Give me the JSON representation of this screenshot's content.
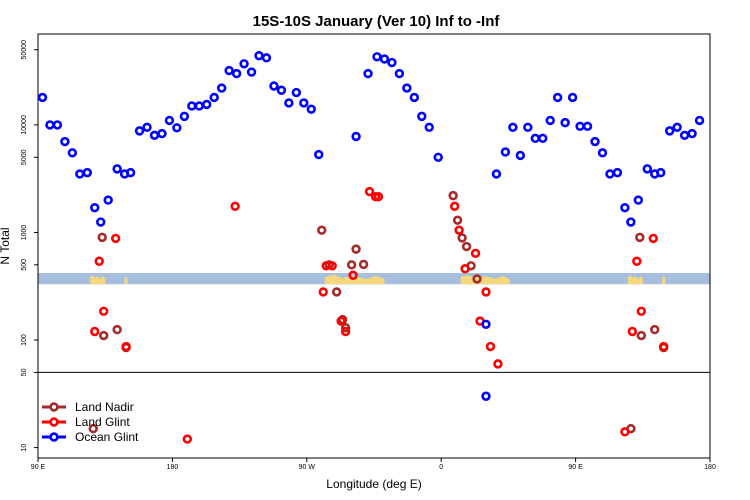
{
  "chart_data": {
    "type": "scatter",
    "title": "15S-10S January (Ver 10)   Inf to -Inf",
    "xlabel": "Longitude (deg E)",
    "ylabel": "N Total",
    "x_scale": "linear",
    "y_scale": "log",
    "xlim": [
      90,
      540
    ],
    "ylim": [
      8,
      70000
    ],
    "x_ticks": [
      {
        "value": 90,
        "label": "90 E"
      },
      {
        "value": 180,
        "label": "180"
      },
      {
        "value": 270,
        "label": "90 W"
      },
      {
        "value": 360,
        "label": "0"
      },
      {
        "value": 450,
        "label": "90 E"
      },
      {
        "value": 540,
        "label": "180"
      }
    ],
    "y_ticks": [
      {
        "value": 10,
        "label": "10"
      },
      {
        "value": 50,
        "label": "50"
      },
      {
        "value": 100,
        "label": "100"
      },
      {
        "value": 500,
        "label": "500"
      },
      {
        "value": 1000,
        "label": "1000"
      },
      {
        "value": 5000,
        "label": "5000"
      },
      {
        "value": 10000,
        "label": "10000"
      },
      {
        "value": 50000,
        "label": "50000"
      }
    ],
    "reference_line_y": 50,
    "map_band": {
      "y_low": 330,
      "y_high": 420,
      "water_color": "#a7bfdf",
      "land_color": "#f7d77c"
    },
    "land_segments": [
      {
        "x0": 125,
        "x1": 135
      },
      {
        "x0": 148,
        "x1": 150
      },
      {
        "x0": 282,
        "x1": 322
      },
      {
        "x0": 373,
        "x1": 406
      },
      {
        "x0": 485,
        "x1": 495
      },
      {
        "x0": 508,
        "x1": 510
      }
    ],
    "legend": {
      "position": "bottom-left",
      "entries": [
        {
          "label": "Land Nadir",
          "color": "#a52a2a"
        },
        {
          "label": "Land Glint",
          "color": "#ff0000"
        },
        {
          "label": "Ocean Glint",
          "color": "#0000ff"
        }
      ]
    },
    "series": [
      {
        "name": "Land Nadir",
        "color": "#a52a2a",
        "points": [
          [
            133,
            900
          ],
          [
            127,
            15
          ],
          [
            134,
            110
          ],
          [
            143,
            125
          ],
          [
            149,
            85
          ],
          [
            280,
            1050
          ],
          [
            285,
            500
          ],
          [
            290,
            280
          ],
          [
            294,
            155
          ],
          [
            296,
            130
          ],
          [
            300,
            500
          ],
          [
            303,
            700
          ],
          [
            308,
            505
          ],
          [
            368,
            2200
          ],
          [
            371,
            1300
          ],
          [
            374,
            890
          ],
          [
            377,
            740
          ],
          [
            380,
            490
          ],
          [
            384,
            370
          ],
          [
            493,
            900
          ],
          [
            487,
            15
          ],
          [
            494,
            110
          ],
          [
            503,
            125
          ],
          [
            509,
            85
          ]
        ]
      },
      {
        "name": "Land Glint",
        "color": "#ff0000",
        "points": [
          [
            128,
            120
          ],
          [
            131,
            540
          ],
          [
            134,
            185
          ],
          [
            142,
            880
          ],
          [
            149,
            87
          ],
          [
            222,
            1750
          ],
          [
            190,
            12
          ],
          [
            281,
            280
          ],
          [
            283,
            490
          ],
          [
            287,
            490
          ],
          [
            293,
            150
          ],
          [
            296,
            120
          ],
          [
            301,
            400
          ],
          [
            312,
            2400
          ],
          [
            316,
            2150
          ],
          [
            318,
            2150
          ],
          [
            369,
            1750
          ],
          [
            372,
            1050
          ],
          [
            376,
            460
          ],
          [
            383,
            640
          ],
          [
            386,
            150
          ],
          [
            390,
            280
          ],
          [
            393,
            87
          ],
          [
            398,
            60
          ],
          [
            488,
            120
          ],
          [
            491,
            540
          ],
          [
            494,
            185
          ],
          [
            502,
            880
          ],
          [
            509,
            87
          ],
          [
            483,
            14
          ]
        ]
      },
      {
        "name": "Ocean Glint",
        "color": "#0000ff",
        "points": [
          [
            93,
            18000
          ],
          [
            98,
            10000
          ],
          [
            103,
            10000
          ],
          [
            108,
            7000
          ],
          [
            113,
            5500
          ],
          [
            118,
            3500
          ],
          [
            123,
            3600
          ],
          [
            128,
            1700
          ],
          [
            132,
            1250
          ],
          [
            137,
            2000
          ],
          [
            143,
            3900
          ],
          [
            148,
            3500
          ],
          [
            152,
            3600
          ],
          [
            158,
            8800
          ],
          [
            163,
            9500
          ],
          [
            168,
            8000
          ],
          [
            173,
            8300
          ],
          [
            178,
            11000
          ],
          [
            183,
            9400
          ],
          [
            188,
            12000
          ],
          [
            193,
            15000
          ],
          [
            198,
            15000
          ],
          [
            203,
            15500
          ],
          [
            208,
            18000
          ],
          [
            213,
            22000
          ],
          [
            218,
            32000
          ],
          [
            223,
            30000
          ],
          [
            228,
            37000
          ],
          [
            233,
            31000
          ],
          [
            238,
            44000
          ],
          [
            243,
            42000
          ],
          [
            248,
            23000
          ],
          [
            253,
            21000
          ],
          [
            258,
            16000
          ],
          [
            263,
            20000
          ],
          [
            268,
            16000
          ],
          [
            273,
            14000
          ],
          [
            278,
            5300
          ],
          [
            303,
            7800
          ],
          [
            311,
            30000
          ],
          [
            317,
            43000
          ],
          [
            322,
            41000
          ],
          [
            327,
            38000
          ],
          [
            332,
            30000
          ],
          [
            337,
            22000
          ],
          [
            342,
            18000
          ],
          [
            347,
            12000
          ],
          [
            352,
            9500
          ],
          [
            358,
            5000
          ],
          [
            390,
            30
          ],
          [
            397,
            3500
          ],
          [
            403,
            5600
          ],
          [
            408,
            9500
          ],
          [
            413,
            5200
          ],
          [
            418,
            9500
          ],
          [
            423,
            7500
          ],
          [
            428,
            7500
          ],
          [
            433,
            11000
          ],
          [
            438,
            18000
          ],
          [
            443,
            10500
          ],
          [
            448,
            18000
          ],
          [
            453,
            9700
          ],
          [
            458,
            9700
          ],
          [
            463,
            7000
          ],
          [
            468,
            5500
          ],
          [
            473,
            3500
          ],
          [
            478,
            3600
          ],
          [
            483,
            1700
          ],
          [
            487,
            1250
          ],
          [
            492,
            2000
          ],
          [
            498,
            3900
          ],
          [
            503,
            3500
          ],
          [
            507,
            3600
          ],
          [
            513,
            8800
          ],
          [
            518,
            9500
          ],
          [
            523,
            8000
          ],
          [
            528,
            8300
          ],
          [
            533,
            11000
          ],
          [
            390,
            140
          ]
        ]
      }
    ]
  }
}
